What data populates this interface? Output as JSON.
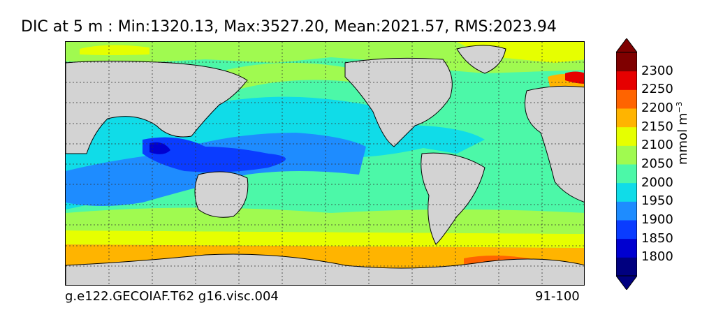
{
  "title": "DIC at 5 m : Min:1320.13, Max:3527.20, Mean:2021.57, RMS:2023.94",
  "footer": {
    "run_id": "g.e122.GECOIAF.T62 g16.visc.004",
    "years": "91-100"
  },
  "colorbar": {
    "unit": "mmol m",
    "unit_exponent": "−3",
    "ticks": [
      "1800",
      "1850",
      "1900",
      "1950",
      "2000",
      "2050",
      "2100",
      "2150",
      "2200",
      "2250",
      "2300"
    ],
    "colors": [
      "#00007f",
      "#0000d0",
      "#0a3cff",
      "#1e8cff",
      "#10dce8",
      "#4cf8a8",
      "#a0fa50",
      "#e6ff00",
      "#ffb400",
      "#ff6400",
      "#e60000",
      "#7f0000"
    ],
    "range": [
      1750,
      2350
    ],
    "extend": "both"
  },
  "map": {
    "land_color": "#d3d3d3",
    "gridlines": "dashed",
    "projection": "global lon-lat (Pacific centered)"
  }
}
